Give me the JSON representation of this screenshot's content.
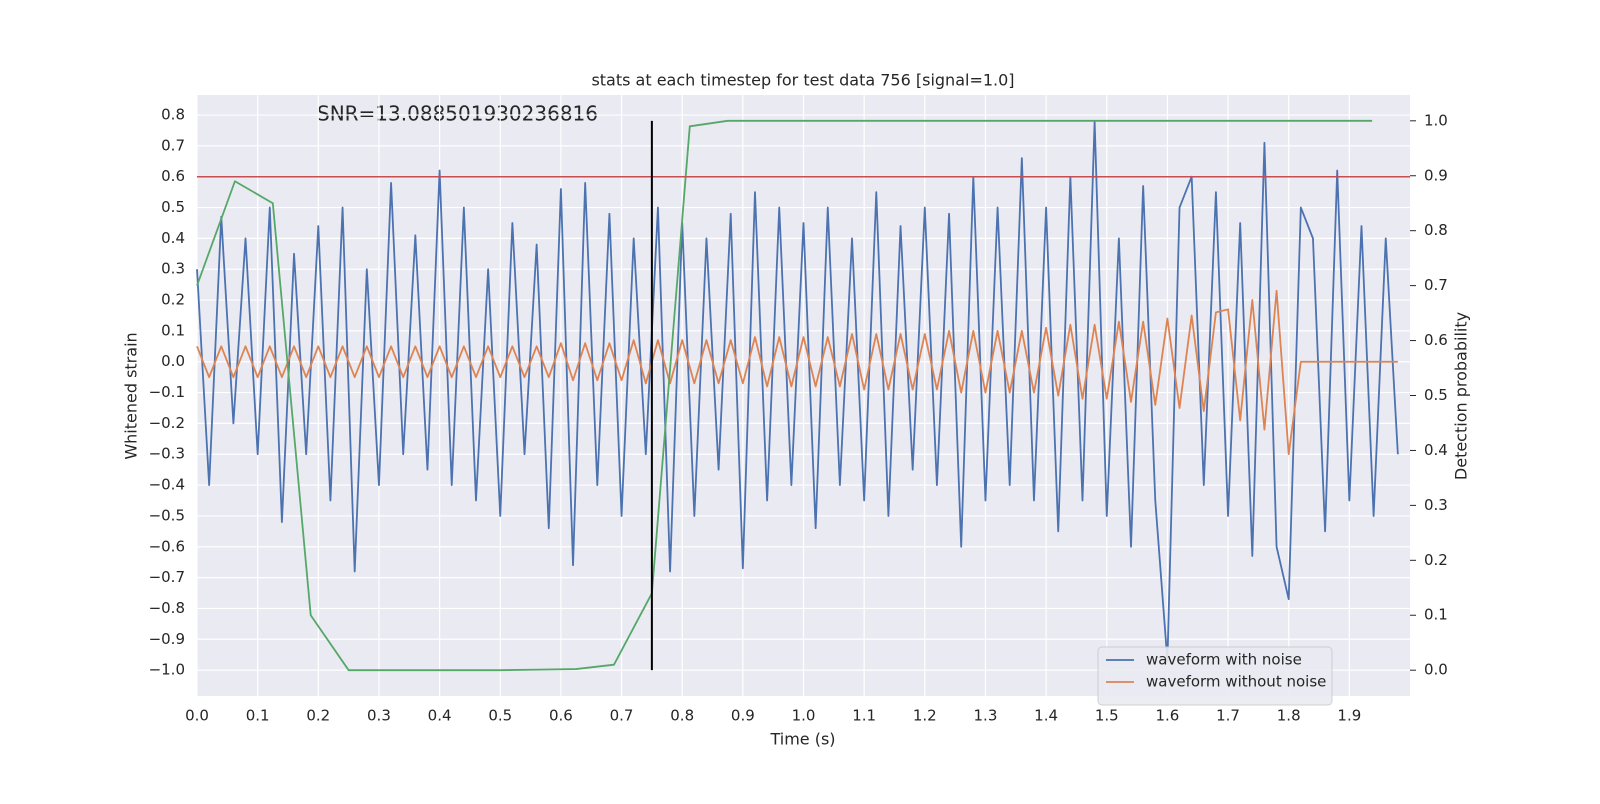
{
  "chart_data": {
    "type": "line",
    "title": "stats at each timestep for test data 756 [signal=1.0]",
    "annotation": "SNR=13.088501930236816",
    "x_label": "Time (s)",
    "y_label": "Whitened strain",
    "y2_label": "Detection probability",
    "xlim": [
      0,
      2.0
    ],
    "ylim": [
      -1.084,
      0.865
    ],
    "y2lim": [
      -0.047,
      1.047
    ],
    "xticks": [
      {
        "value": 0,
        "label": "0.0"
      },
      0.1,
      0.2,
      0.3,
      0.4,
      0.5,
      0.6,
      0.7,
      0.8,
      0.9,
      {
        "value": 1,
        "label": "1.0"
      },
      1.1,
      1.2,
      1.3,
      1.4,
      1.5,
      1.6,
      1.7,
      1.8,
      1.9
    ],
    "yticks": [
      {
        "value": -1,
        "label": "−1.0"
      },
      {
        "value": -0.9,
        "label": "−0.9"
      },
      {
        "value": -0.8,
        "label": "−0.8"
      },
      {
        "value": -0.7,
        "label": "−0.7"
      },
      {
        "value": -0.6,
        "label": "−0.6"
      },
      {
        "value": -0.5,
        "label": "−0.5"
      },
      {
        "value": -0.4,
        "label": "−0.4"
      },
      {
        "value": -0.3,
        "label": "−0.3"
      },
      {
        "value": -0.2,
        "label": "−0.2"
      },
      {
        "value": -0.1,
        "label": "−0.1"
      },
      {
        "value": 0,
        "label": "0.0"
      },
      0.1,
      0.2,
      0.3,
      0.4,
      0.5,
      0.6,
      0.7,
      0.8
    ],
    "y2ticks": [
      {
        "value": 0,
        "label": "0.0"
      },
      0.1,
      0.2,
      0.3,
      0.4,
      0.5,
      0.6,
      0.7,
      0.8,
      0.9,
      {
        "value": 1,
        "label": "1.0"
      }
    ],
    "grid": true,
    "legend": "lower right",
    "x": [
      0,
      0.02,
      0.04,
      0.06,
      0.08,
      0.1,
      0.12,
      0.14,
      0.16,
      0.18,
      0.2,
      0.22,
      0.24,
      0.26,
      0.28,
      0.3,
      0.32,
      0.34,
      0.36,
      0.38,
      0.4,
      0.42,
      0.44,
      0.46,
      0.48,
      0.5,
      0.52,
      0.54,
      0.56,
      0.58,
      0.6,
      0.62,
      0.64,
      0.66,
      0.68,
      0.7,
      0.72,
      0.74,
      0.76,
      0.78,
      0.8,
      0.82,
      0.84,
      0.86,
      0.88,
      0.9,
      0.92,
      0.94,
      0.96,
      0.98,
      1.0,
      1.02,
      1.04,
      1.06,
      1.08,
      1.1,
      1.12,
      1.14,
      1.16,
      1.18,
      1.2,
      1.22,
      1.24,
      1.26,
      1.28,
      1.3,
      1.32,
      1.34,
      1.36,
      1.38,
      1.4,
      1.42,
      1.44,
      1.46,
      1.48,
      1.5,
      1.52,
      1.54,
      1.56,
      1.58,
      1.6,
      1.62,
      1.64,
      1.66,
      1.68,
      1.7,
      1.72,
      1.74,
      1.76,
      1.78,
      1.8,
      1.82,
      1.84,
      1.86,
      1.88,
      1.9,
      1.92,
      1.94,
      1.96,
      1.98
    ],
    "series": [
      {
        "name": "waveform with noise",
        "color": "#4c72b0",
        "values": [
          0.3,
          -0.4,
          0.47,
          -0.2,
          0.4,
          -0.3,
          0.5,
          -0.52,
          0.35,
          -0.3,
          0.44,
          -0.45,
          0.5,
          -0.68,
          0.3,
          -0.4,
          0.58,
          -0.3,
          0.41,
          -0.35,
          0.62,
          -0.4,
          0.5,
          -0.45,
          0.3,
          -0.5,
          0.45,
          -0.3,
          0.38,
          -0.54,
          0.56,
          -0.66,
          0.58,
          -0.4,
          0.48,
          -0.5,
          0.4,
          -0.3,
          0.5,
          -0.68,
          0.45,
          -0.5,
          0.4,
          -0.35,
          0.48,
          -0.67,
          0.55,
          -0.45,
          0.5,
          -0.4,
          0.45,
          -0.54,
          0.5,
          -0.4,
          0.4,
          -0.45,
          0.55,
          -0.5,
          0.44,
          -0.35,
          0.5,
          -0.4,
          0.48,
          -0.6,
          0.6,
          -0.45,
          0.5,
          -0.4,
          0.66,
          -0.45,
          0.5,
          -0.55,
          0.6,
          -0.45,
          0.78,
          -0.5,
          0.4,
          -0.6,
          0.57,
          -0.45,
          -0.97,
          0.5,
          0.6,
          -0.4,
          0.55,
          -0.5,
          0.45,
          -0.63,
          0.71,
          -0.6,
          -0.77,
          0.5,
          0.4,
          -0.55,
          0.62,
          -0.45,
          0.44,
          -0.5,
          0.4,
          -0.3
        ]
      },
      {
        "name": "waveform without noise",
        "color": "#dd8452",
        "values": [
          0.05,
          -0.05,
          0.05,
          -0.05,
          0.05,
          -0.05,
          0.05,
          -0.05,
          0.05,
          -0.05,
          0.05,
          -0.05,
          0.05,
          -0.05,
          0.05,
          -0.05,
          0.05,
          -0.05,
          0.05,
          -0.05,
          0.05,
          -0.05,
          0.05,
          -0.05,
          0.05,
          -0.05,
          0.05,
          -0.05,
          0.05,
          -0.05,
          0.06,
          -0.06,
          0.06,
          -0.06,
          0.06,
          -0.06,
          0.07,
          -0.07,
          0.07,
          -0.07,
          0.07,
          -0.07,
          0.07,
          -0.07,
          0.07,
          -0.07,
          0.08,
          -0.08,
          0.08,
          -0.08,
          0.08,
          -0.08,
          0.08,
          -0.08,
          0.09,
          -0.09,
          0.09,
          -0.09,
          0.09,
          -0.09,
          0.09,
          -0.09,
          0.1,
          -0.1,
          0.1,
          -0.1,
          0.1,
          -0.1,
          0.1,
          -0.1,
          0.11,
          -0.11,
          0.12,
          -0.12,
          0.12,
          -0.12,
          0.13,
          -0.13,
          0.13,
          -0.14,
          0.14,
          -0.15,
          0.15,
          -0.16,
          0.16,
          0.17,
          -0.19,
          0.2,
          -0.22,
          0.23,
          -0.3,
          0,
          0,
          0,
          0,
          0,
          0,
          0,
          0,
          0
        ]
      },
      {
        "name": "Detection probability",
        "color": "#55a868",
        "axis": "y2",
        "legend": false,
        "x": [
          0,
          0.0625,
          0.125,
          0.1875,
          0.25,
          0.3125,
          0.375,
          0.4375,
          0.5,
          0.5625,
          0.625,
          0.6875,
          0.75,
          0.8125,
          0.875,
          0.9375,
          1.0,
          1.0625,
          1.125,
          1.1875,
          1.25,
          1.3125,
          1.375,
          1.4375,
          1.5,
          1.5625,
          1.625,
          1.6875,
          1.75,
          1.8125,
          1.875,
          1.9375
        ],
        "values": [
          0.7,
          0.89,
          0.85,
          0.1,
          0,
          0,
          0,
          0,
          0,
          0.001,
          0.002,
          0.01,
          0.14,
          0.99,
          1,
          1,
          1,
          1,
          1,
          1,
          1,
          1,
          1,
          1,
          1,
          1,
          1,
          1,
          1,
          1,
          1,
          1
        ]
      }
    ],
    "hline": {
      "y": 0.6,
      "color": "#c44e52"
    },
    "vline": {
      "x": 0.75,
      "color": "#000000"
    }
  }
}
